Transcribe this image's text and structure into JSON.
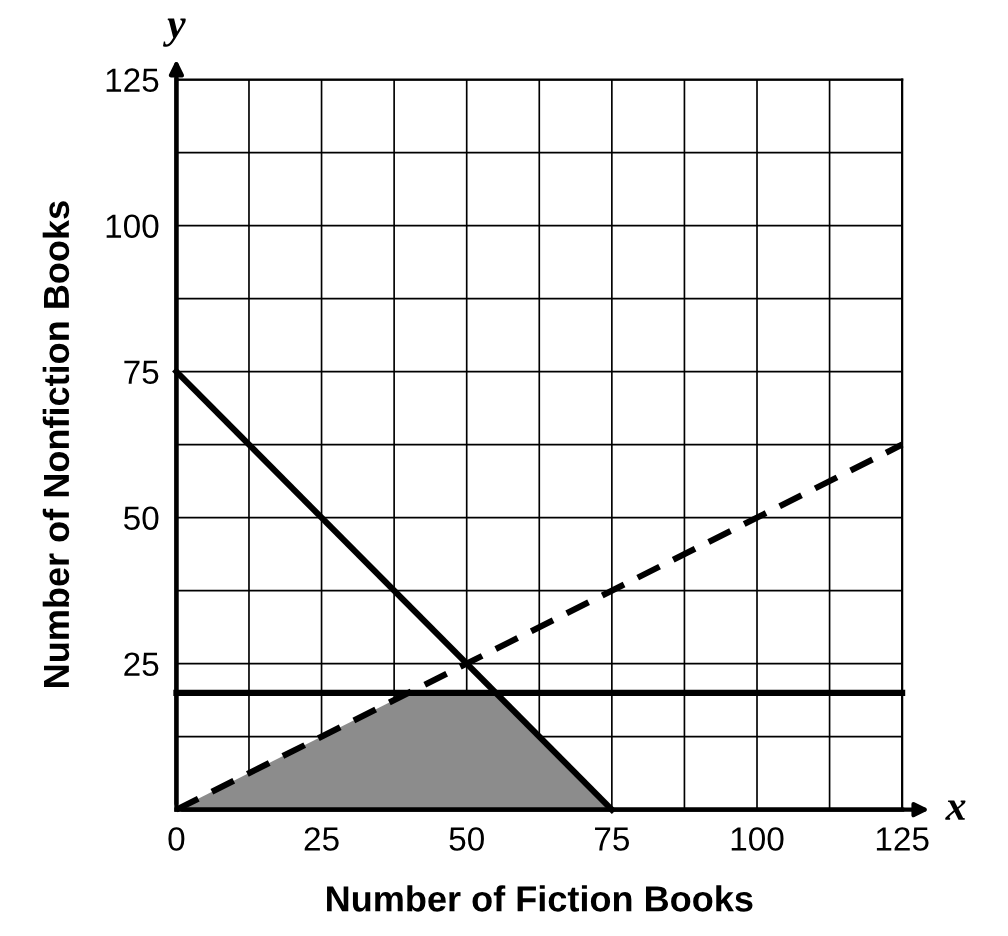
{
  "chart_data": {
    "type": "line",
    "xlabel": "Number of Fiction Books",
    "ylabel": "Number of Nonfiction Books",
    "annotations": [
      "x",
      "y"
    ],
    "xlim": [
      0,
      125
    ],
    "ylim": [
      0,
      125
    ],
    "xticks": [
      0,
      {
        "value": 12.5,
        "label": null
      },
      25,
      {
        "value": 37.5,
        "label": null
      },
      50,
      {
        "value": 62.5,
        "label": null
      },
      75,
      {
        "value": 87.5,
        "label": null
      },
      100,
      {
        "value": 112.5,
        "label": null
      },
      125
    ],
    "yticks": [
      {
        "value": 0,
        "label": null
      },
      {
        "value": 12.5,
        "label": null
      },
      25,
      {
        "value": 37.5,
        "label": null
      },
      50,
      {
        "value": 62.5,
        "label": null
      },
      75,
      {
        "value": 87.5,
        "label": null
      },
      100,
      {
        "value": 112.5,
        "label": null
      },
      125
    ],
    "grid": true,
    "series": [
      {
        "type": "area",
        "color": "#8c8c8c",
        "x": [
          0,
          40,
          55,
          75
        ],
        "values": [
          0,
          20,
          20,
          0
        ]
      },
      {
        "color": "#000000",
        "x": [
          0,
          75
        ],
        "values": [
          75,
          0
        ],
        "line_style": "solid"
      },
      {
        "color": "#000000",
        "x": [
          0,
          125
        ],
        "values": [
          20,
          20
        ],
        "line_style": "solid"
      },
      {
        "color": "#000000",
        "x": [
          0,
          125
        ],
        "values": [
          0,
          62.5
        ],
        "line_style": "dashed"
      }
    ]
  }
}
